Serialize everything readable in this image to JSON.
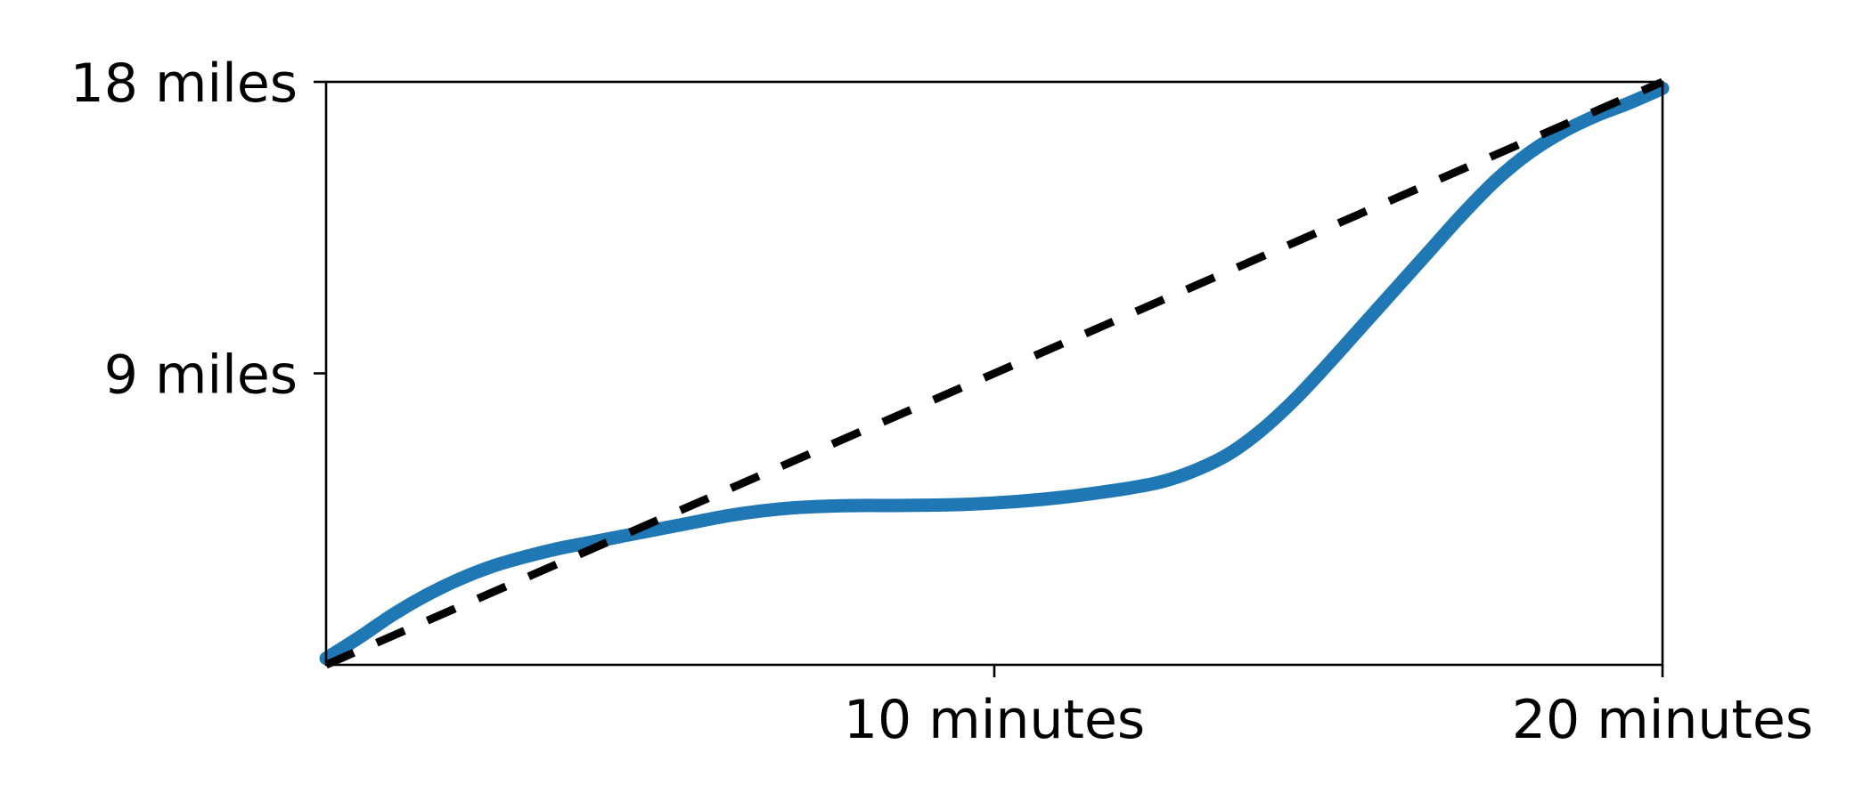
{
  "chart_data": {
    "type": "line",
    "title": "",
    "xlabel": "",
    "ylabel": "",
    "xlim": [
      0,
      20
    ],
    "ylim": [
      0,
      18
    ],
    "x_ticks": [
      {
        "value": 10,
        "label": "10 minutes"
      },
      {
        "value": 20,
        "label": "20 minutes"
      }
    ],
    "y_ticks": [
      {
        "value": 9,
        "label": "9 miles"
      },
      {
        "value": 18,
        "label": "18 miles"
      }
    ],
    "grid": false,
    "series": [
      {
        "color": "#1f77b4",
        "style": "solid",
        "x": [
          0,
          0.5,
          1,
          1.5,
          2,
          2.5,
          3,
          3.5,
          4,
          4.5,
          5,
          5.5,
          6,
          6.5,
          7,
          7.5,
          8,
          8.5,
          9,
          9.5,
          10,
          10.5,
          11,
          11.5,
          12,
          12.5,
          13,
          13.5,
          14,
          14.5,
          15,
          15.5,
          16,
          16.5,
          17,
          17.5,
          18,
          18.5,
          19,
          19.5,
          20
        ],
        "y": [
          0.2,
          0.85,
          1.55,
          2.15,
          2.65,
          3.05,
          3.35,
          3.6,
          3.8,
          4.0,
          4.2,
          4.4,
          4.6,
          4.75,
          4.85,
          4.9,
          4.92,
          4.92,
          4.93,
          4.95,
          5.0,
          5.07,
          5.17,
          5.3,
          5.45,
          5.65,
          6.0,
          6.5,
          7.25,
          8.2,
          9.3,
          10.45,
          11.6,
          12.75,
          13.9,
          14.95,
          15.8,
          16.45,
          16.95,
          17.35,
          17.8
        ]
      },
      {
        "color": "#000000",
        "style": "dashed",
        "x": [
          0,
          20
        ],
        "y": [
          0,
          18
        ]
      }
    ]
  }
}
